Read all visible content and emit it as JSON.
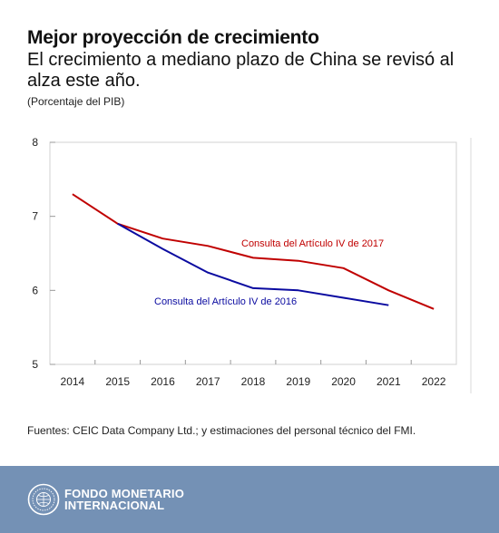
{
  "header": {
    "title": "Mejor proyección de crecimiento",
    "subtitle": "El crecimiento a mediano plazo de China se revisó al alza este año.",
    "unit": "(Porcentaje del PIB)"
  },
  "chart_data": {
    "type": "line",
    "title": "Mejor proyección de crecimiento",
    "subtitle": "El crecimiento a mediano plazo de China se revisó al alza este año.",
    "ylabel": "(Porcentaje del PIB)",
    "xlabel": "",
    "x": [
      2014,
      2015,
      2016,
      2017,
      2018,
      2019,
      2020,
      2021,
      2022
    ],
    "ylim": [
      5,
      8
    ],
    "yticks": [
      5,
      6,
      7,
      8
    ],
    "grid": false,
    "series": [
      {
        "name": "Consulta del Artículo IV de 2017",
        "color": "#c00000",
        "values": [
          7.3,
          6.9,
          6.7,
          6.6,
          6.44,
          6.4,
          6.3,
          6.0,
          5.75
        ]
      },
      {
        "name": "Consulta del Artículo IV de 2016",
        "color": "#0a0aa0",
        "values": [
          null,
          6.9,
          6.56,
          6.24,
          6.03,
          6.0,
          5.9,
          5.8,
          null
        ]
      }
    ]
  },
  "source": "Fuentes: CEIC Data Company Ltd.; y estimaciones del personal técnico del FMI.",
  "footer": {
    "org_line1": "FONDO MONETARIO",
    "org_line2": "INTERNACIONAL",
    "footer_color": "#7491b5"
  }
}
